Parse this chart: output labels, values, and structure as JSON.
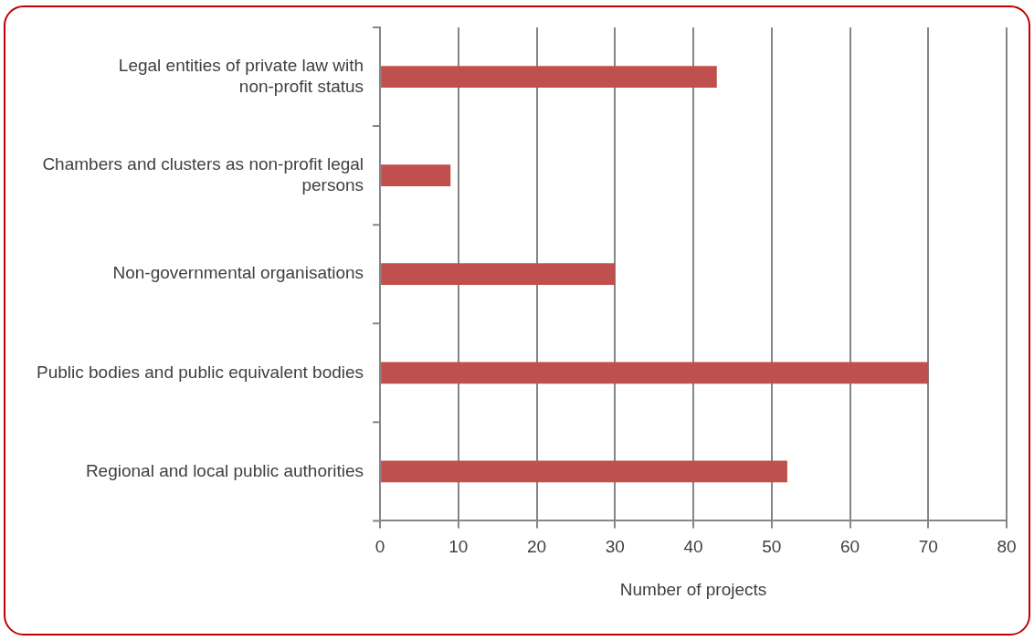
{
  "chart_data": {
    "type": "bar",
    "orientation": "horizontal",
    "xlabel": "Number of projects",
    "categories": [
      "Legal entities of private law with non-profit status",
      "Chambers and clusters as non-profit legal persons",
      "Non-governmental organisations",
      "Public bodies and public equivalent bodies",
      "Regional and local public authorities"
    ],
    "values": [
      43,
      9,
      30,
      70,
      52
    ],
    "color": "#c0504d",
    "xlim": [
      0,
      80
    ],
    "xticks": [
      0,
      10,
      20,
      30,
      40,
      50,
      60,
      70,
      80
    ],
    "grid": "x",
    "legend": false
  }
}
